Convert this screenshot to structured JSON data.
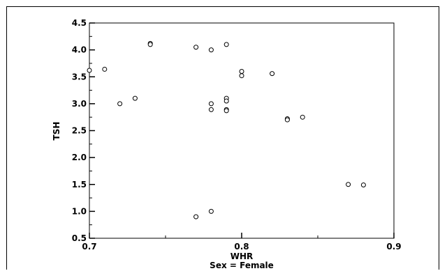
{
  "chart_data": {
    "type": "scatter",
    "title": "",
    "xlabel": "WHR",
    "ylabel": "TSH",
    "caption": "Sex = Female",
    "xlim": [
      0.7,
      0.9
    ],
    "ylim": [
      0.5,
      4.5
    ],
    "x_ticks": [
      "0.7",
      "0.8",
      "0.9"
    ],
    "y_ticks": [
      "0.5",
      "1.0",
      "1.5",
      "2.0",
      "2.5",
      "3.0",
      "3.5",
      "4.0",
      "4.5"
    ],
    "grid": false,
    "marker": "open-circle",
    "points": [
      {
        "x": 0.7,
        "y": 3.62
      },
      {
        "x": 0.71,
        "y": 3.64
      },
      {
        "x": 0.72,
        "y": 3.0
      },
      {
        "x": 0.73,
        "y": 3.1
      },
      {
        "x": 0.74,
        "y": 4.12
      },
      {
        "x": 0.74,
        "y": 4.1
      },
      {
        "x": 0.77,
        "y": 4.05
      },
      {
        "x": 0.77,
        "y": 0.9
      },
      {
        "x": 0.78,
        "y": 4.0
      },
      {
        "x": 0.78,
        "y": 3.0
      },
      {
        "x": 0.78,
        "y": 2.89
      },
      {
        "x": 0.78,
        "y": 1.0
      },
      {
        "x": 0.79,
        "y": 4.1
      },
      {
        "x": 0.79,
        "y": 3.1
      },
      {
        "x": 0.79,
        "y": 3.05
      },
      {
        "x": 0.79,
        "y": 2.89
      },
      {
        "x": 0.79,
        "y": 2.87
      },
      {
        "x": 0.8,
        "y": 3.6
      },
      {
        "x": 0.8,
        "y": 3.52
      },
      {
        "x": 0.82,
        "y": 3.56
      },
      {
        "x": 0.83,
        "y": 2.72
      },
      {
        "x": 0.83,
        "y": 2.7
      },
      {
        "x": 0.84,
        "y": 2.75
      },
      {
        "x": 0.87,
        "y": 1.5
      },
      {
        "x": 0.88,
        "y": 1.49
      }
    ]
  },
  "colors": {
    "axis": "#000000",
    "marker_stroke": "#000000",
    "background": "#ffffff"
  }
}
